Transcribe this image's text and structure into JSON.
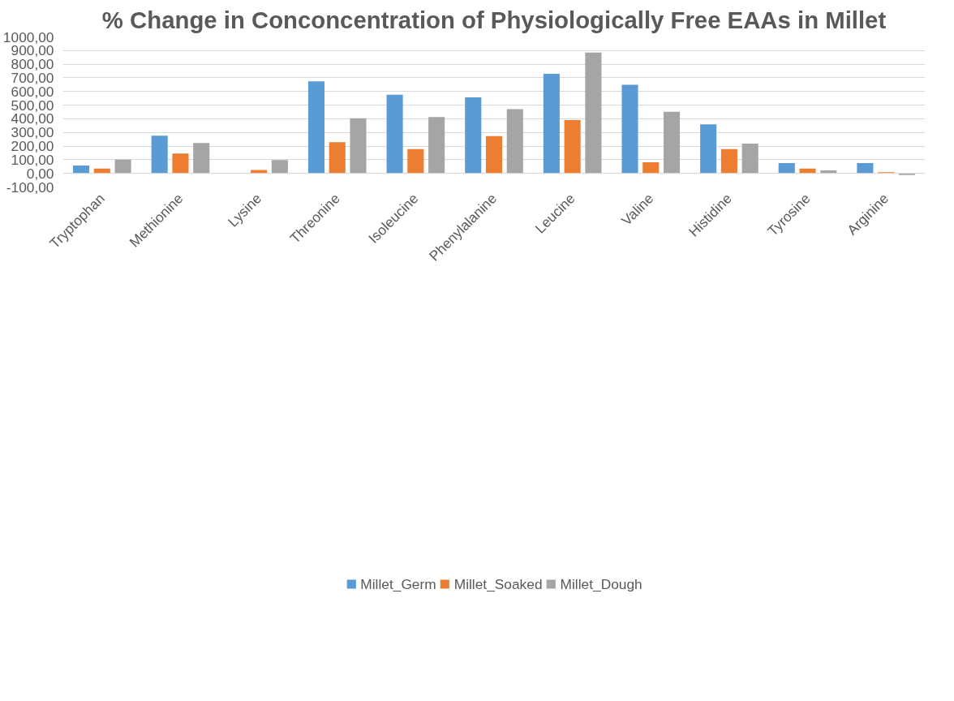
{
  "chart_data": {
    "type": "bar",
    "title": "% Change in Conconcentration of Physiologically Free EAAs in Millet",
    "categories": [
      "Tryptophan",
      "Methionine",
      "Lysine",
      "Threonine",
      "Isoleucine",
      "Phenylalanine",
      "Leucine",
      "Valine",
      "Histidine",
      "Tyrosine",
      "Arginine"
    ],
    "series": [
      {
        "name": "Millet_Germ",
        "color": "#5b9bd5",
        "values": [
          58,
          276,
          0,
          674,
          576,
          557,
          729,
          649,
          360,
          75,
          75
        ]
      },
      {
        "name": "Millet_Soaked",
        "color": "#ed7d31",
        "values": [
          35,
          145,
          25,
          229,
          178,
          273,
          391,
          82,
          178,
          35,
          8
        ]
      },
      {
        "name": "Millet_Dough",
        "color": "#a5a5a5",
        "values": [
          100,
          222,
          98,
          404,
          413,
          471,
          885,
          452,
          218,
          22,
          -12
        ]
      }
    ],
    "ylim": [
      -100,
      1000
    ],
    "yticks": [
      {
        "value": -100,
        "label": "-100,00"
      },
      {
        "value": 0,
        "label": "0,00"
      },
      {
        "value": 100,
        "label": "100,00"
      },
      {
        "value": 200,
        "label": "200,00"
      },
      {
        "value": 300,
        "label": "300,00"
      },
      {
        "value": 400,
        "label": "400,00"
      },
      {
        "value": 500,
        "label": "500,00"
      },
      {
        "value": 600,
        "label": "600,00"
      },
      {
        "value": 700,
        "label": "700,00"
      },
      {
        "value": 800,
        "label": "800,00"
      },
      {
        "value": 900,
        "label": "900,00"
      },
      {
        "value": 1000,
        "label": "1000,00"
      }
    ],
    "grid": "y",
    "legend": "bottom"
  }
}
